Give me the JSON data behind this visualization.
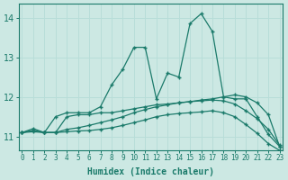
{
  "xlabel": "Humidex (Indice chaleur)",
  "bg_color": "#cce8e3",
  "line_color": "#1a7a6a",
  "grid_color": "#b8ddd8",
  "xlim": [
    -0.3,
    23.3
  ],
  "ylim": [
    10.65,
    14.35
  ],
  "yticks": [
    11,
    12,
    13,
    14
  ],
  "xticks": [
    0,
    1,
    2,
    3,
    4,
    5,
    6,
    7,
    8,
    9,
    10,
    11,
    12,
    13,
    14,
    15,
    16,
    17,
    18,
    19,
    20,
    21,
    22,
    23
  ],
  "lines": [
    {
      "x": [
        0,
        1,
        2,
        3,
        4,
        5,
        6,
        7,
        8,
        9,
        10,
        11,
        12,
        13,
        14,
        15,
        16,
        17,
        18,
        19,
        20,
        21,
        22,
        23
      ],
      "y": [
        11.1,
        11.2,
        11.1,
        11.5,
        11.6,
        11.6,
        11.6,
        11.75,
        12.3,
        12.7,
        13.25,
        13.25,
        11.95,
        12.6,
        12.5,
        13.85,
        14.1,
        13.65,
        12.0,
        11.95,
        11.95,
        11.5,
        11.05,
        10.75
      ]
    },
    {
      "x": [
        0,
        1,
        2,
        3,
        4,
        5,
        6,
        7,
        8,
        9,
        10,
        11,
        12,
        13,
        14,
        15,
        16,
        17,
        18,
        19,
        20,
        21,
        22,
        23
      ],
      "y": [
        11.1,
        11.15,
        11.1,
        11.1,
        11.5,
        11.55,
        11.55,
        11.6,
        11.6,
        11.65,
        11.7,
        11.75,
        11.8,
        11.82,
        11.85,
        11.88,
        11.92,
        11.95,
        12.0,
        12.05,
        12.0,
        11.85,
        11.55,
        10.75
      ]
    },
    {
      "x": [
        0,
        1,
        2,
        3,
        4,
        5,
        6,
        7,
        8,
        9,
        10,
        11,
        12,
        13,
        14,
        15,
        16,
        17,
        18,
        19,
        20,
        21,
        22,
        23
      ],
      "y": [
        11.1,
        11.15,
        11.1,
        11.1,
        11.18,
        11.22,
        11.28,
        11.35,
        11.42,
        11.5,
        11.6,
        11.68,
        11.75,
        11.8,
        11.85,
        11.88,
        11.9,
        11.92,
        11.9,
        11.82,
        11.65,
        11.45,
        11.18,
        10.78
      ]
    },
    {
      "x": [
        0,
        1,
        2,
        3,
        4,
        5,
        6,
        7,
        8,
        9,
        10,
        11,
        12,
        13,
        14,
        15,
        16,
        17,
        18,
        19,
        20,
        21,
        22,
        23
      ],
      "y": [
        11.1,
        11.12,
        11.1,
        11.1,
        11.12,
        11.14,
        11.15,
        11.18,
        11.22,
        11.28,
        11.35,
        11.42,
        11.5,
        11.55,
        11.58,
        11.6,
        11.62,
        11.65,
        11.6,
        11.5,
        11.3,
        11.08,
        10.82,
        10.65
      ]
    }
  ]
}
